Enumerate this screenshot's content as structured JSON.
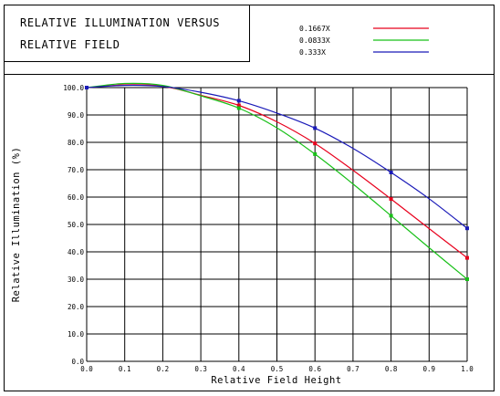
{
  "header": {
    "title_line_1": "RELATIVE ILLUMINATION  VERSUS",
    "title_line_2": "RELATIVE FIELD"
  },
  "chart_data": {
    "type": "line",
    "title": "RELATIVE ILLUMINATION  VERSUS RELATIVE FIELD",
    "xlabel": "Relative Field Height",
    "ylabel": "Relative Illumination (%)",
    "xlim": [
      0.0,
      1.0
    ],
    "ylim": [
      0.0,
      100.0
    ],
    "x_ticks": [
      "0.0",
      "0.1",
      "0.2",
      "0.3",
      "0.4",
      "0.5",
      "0.6",
      "0.7",
      "0.8",
      "0.9",
      "1.0"
    ],
    "y_ticks": [
      "0.0",
      "10.0",
      "20.0",
      "30.0",
      "40.0",
      "50.0",
      "60.0",
      "70.0",
      "80.0",
      "90.0",
      "100.0"
    ],
    "grid": true,
    "legend": "top-right",
    "x": [
      0.0,
      0.1,
      0.2,
      0.3,
      0.4,
      0.5,
      0.6,
      0.7,
      0.8,
      0.9,
      1.0
    ],
    "series": [
      {
        "name": "0.1667X",
        "color": "#e8001c",
        "values": [
          100.0,
          101.0,
          100.5,
          97.2,
          93.5,
          87.5,
          79.6,
          69.8,
          59.3,
          48.5,
          37.8
        ],
        "marker_x": [
          0.0,
          0.4,
          0.6,
          0.8,
          1.0
        ]
      },
      {
        "name": "0.0833X",
        "color": "#18c018",
        "values": [
          100.0,
          101.5,
          100.8,
          97.0,
          92.5,
          85.3,
          75.7,
          64.8,
          53.2,
          41.5,
          30.0
        ],
        "marker_x": [
          0.0,
          0.4,
          0.6,
          0.8,
          1.0
        ]
      },
      {
        "name": "0.333X",
        "color": "#1a1ab8",
        "values": [
          100.0,
          100.8,
          100.4,
          98.3,
          95.2,
          90.7,
          85.2,
          77.8,
          69.0,
          59.4,
          48.6
        ],
        "marker_x": [
          0.0,
          0.4,
          0.6,
          0.8,
          1.0
        ]
      }
    ]
  }
}
